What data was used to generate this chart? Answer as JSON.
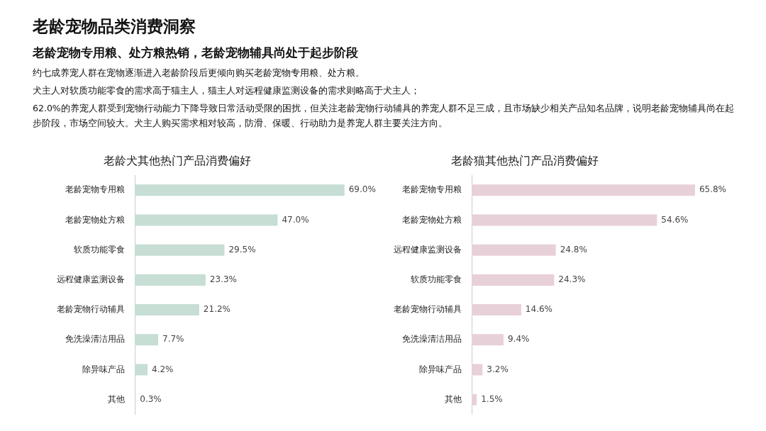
{
  "chart_data": [
    {
      "type": "other",
      "title": "老龄宠物品类消费洞察",
      "subtitle": "老龄宠物专用粮、处方粮热销，老龄宠物辅具尚处于起步阶段",
      "annotations": [
        "约七成养宠人群在宠物逐渐进入老龄阶段后更倾向购买老龄宠物专用粮、处方粮。",
        "犬主人对软质功能零食的需求高于猫主人，猫主人对远程健康监测设备的需求则略高于犬主人；",
        "62.0%的养宠人群受到宠物行动能力下降导致日常活动受限的困扰，但关注老龄宠物行动辅具的养宠人群不足三成，且市场缺少相关产品知名品牌，说明老龄宠物辅具尚在起步阶段，市场空间较大。犬主人购买需求相对较高，防滑、保暖、行动助力是养宠人群主要关注方向。"
      ]
    },
    {
      "type": "bar",
      "orientation": "horizontal",
      "title": "老龄犬其他热门产品消费偏好",
      "categories": [
        "老龄宠物专用粮",
        "老龄宠物处方粮",
        "软质功能零食",
        "远程健康监测设备",
        "老龄宠物行动辅具",
        "免洗澡清洁用品",
        "除异味产品",
        "其他"
      ],
      "values": [
        69.0,
        47.0,
        29.5,
        23.3,
        21.2,
        7.7,
        4.2,
        0.3
      ],
      "value_labels": [
        "69.0%",
        "47.0%",
        "29.5%",
        "23.3%",
        "21.2%",
        "7.7%",
        "4.2%",
        "0.3%"
      ],
      "color": "#c6ded3",
      "tick_labels": "y",
      "grid": false,
      "legend": false
    },
    {
      "type": "bar",
      "orientation": "horizontal",
      "title": "老龄猫其他热门产品消费偏好",
      "categories": [
        "老龄宠物专用粮",
        "老龄宠物处方粮",
        "远程健康监测设备",
        "软质功能零食",
        "老龄宠物行动辅具",
        "免洗澡清洁用品",
        "除异味产品",
        "其他"
      ],
      "values": [
        65.8,
        54.6,
        24.8,
        24.3,
        14.6,
        9.4,
        3.2,
        1.5
      ],
      "value_labels": [
        "65.8%",
        "54.6%",
        "24.8%",
        "24.3%",
        "14.6%",
        "9.4%",
        "3.2%",
        "1.5%"
      ],
      "color": "#e8d0d9",
      "tick_labels": "y",
      "grid": false,
      "legend": false
    }
  ]
}
